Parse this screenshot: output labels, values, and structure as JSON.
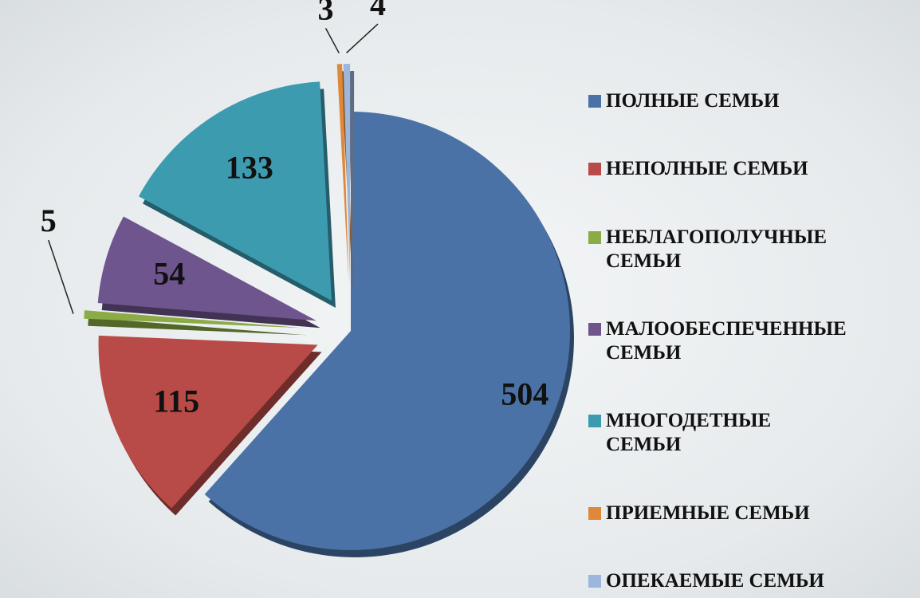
{
  "chart_data": {
    "type": "pie",
    "categories": [
      "ПОЛНЫЕ СЕМЬИ",
      "НЕПОЛНЫЕ СЕМЬИ",
      "НЕБЛАГОПОЛУЧНЫЕ СЕМЬИ",
      "МАЛООБЕСПЕЧЕННЫЕ СЕМЬИ",
      "МНОГОДЕТНЫЕ СЕМЬИ",
      "ПРИЕМНЫЕ СЕМЬИ",
      "ОПЕКАЕМЫЕ СЕМЬИ"
    ],
    "values": [
      504,
      115,
      5,
      54,
      133,
      3,
      4
    ],
    "colors": [
      "#4a72a6",
      "#b84a47",
      "#8aab45",
      "#6e558e",
      "#3d9bb0",
      "#e0883a",
      "#9db6dc"
    ],
    "legend": "right"
  }
}
